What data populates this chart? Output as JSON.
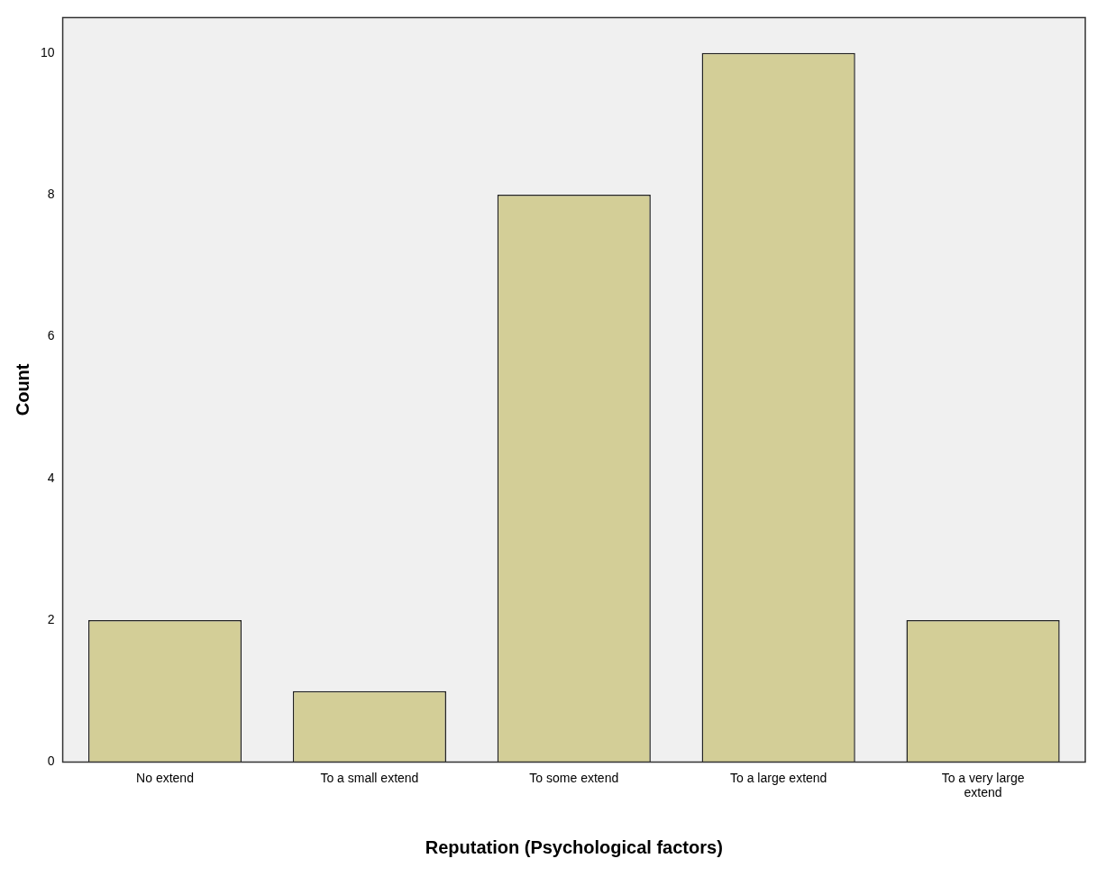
{
  "chart_data": {
    "type": "bar",
    "xlabel": "Reputation (Psychological factors)",
    "ylabel": "Count",
    "categories": [
      "No extend",
      "To a small extend",
      "To some extend",
      "To a large extend",
      "To a very large extend"
    ],
    "values": [
      2,
      1,
      8,
      10,
      2
    ],
    "color": "#d3ce97",
    "ylim": [
      0,
      10.5
    ],
    "yticks": [
      0,
      2,
      4,
      6,
      8,
      10
    ],
    "grid": false,
    "legend": false
  }
}
